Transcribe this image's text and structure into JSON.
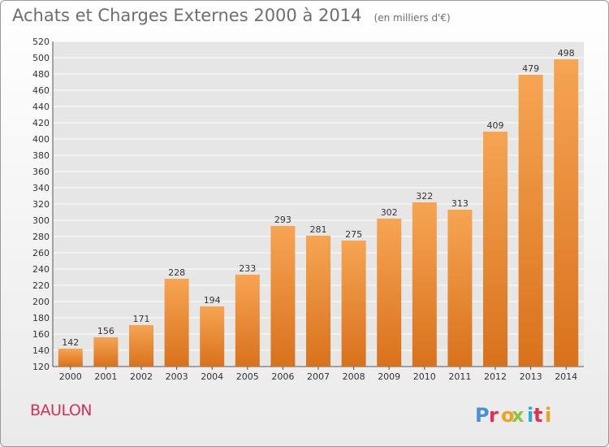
{
  "header": {
    "title": "Achats et Charges Externes 2000 à 2014",
    "subtitle": "(en milliers d'€)"
  },
  "footer": {
    "commune": "BAULON",
    "logo_text": "Proxiti"
  },
  "colors": {
    "bar_top": "#f6a553",
    "bar_bottom": "#d9711c",
    "grid": "#ffffff",
    "plot_bg": "#e6e6e6",
    "commune": "#d1325a",
    "logo_letters": [
      "#4a90d9",
      "#e0304a",
      "#f0a020",
      "#8cc63f",
      "#29abe2",
      "#e0304a",
      "#f0a020"
    ]
  },
  "chart_data": {
    "type": "bar",
    "title": "Achats et Charges Externes 2000 à 2014",
    "subtitle": "(en milliers d'€)",
    "xlabel": "",
    "ylabel": "",
    "categories": [
      "2000",
      "2001",
      "2002",
      "2003",
      "2004",
      "2005",
      "2006",
      "2007",
      "2008",
      "2009",
      "2010",
      "2011",
      "2012",
      "2013",
      "2014"
    ],
    "values": [
      142,
      156,
      171,
      228,
      194,
      233,
      293,
      281,
      275,
      302,
      322,
      313,
      409,
      479,
      498
    ],
    "ylim": [
      120,
      520
    ],
    "ytick_step": 20,
    "grid": true,
    "legend": "none",
    "data_labels": true
  }
}
